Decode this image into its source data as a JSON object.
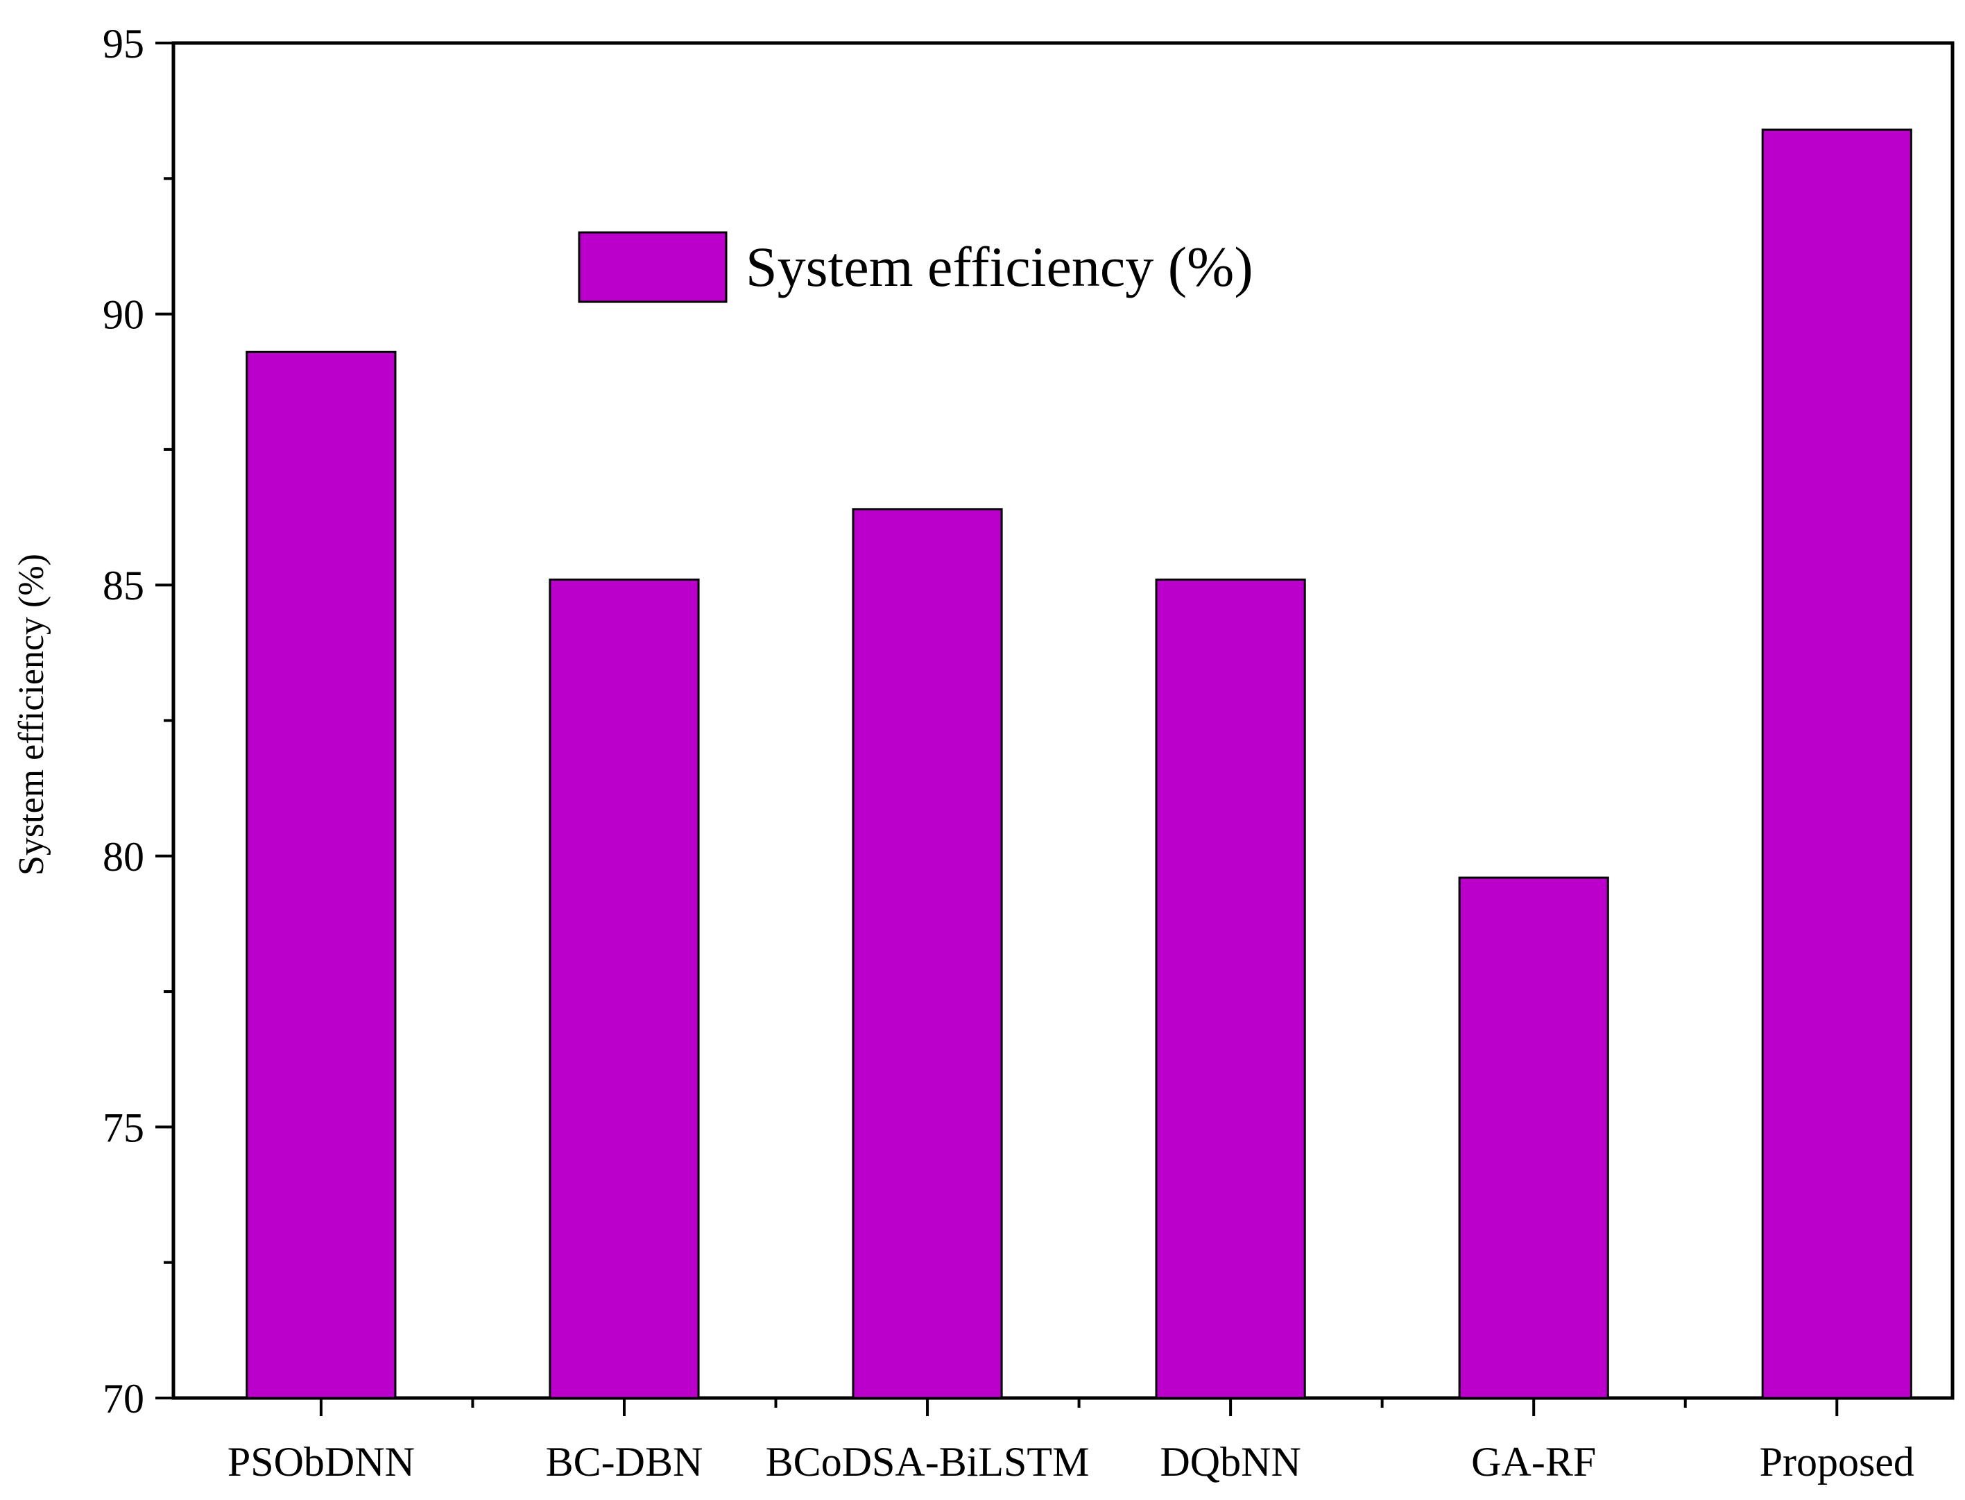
{
  "chart_data": {
    "type": "bar",
    "title": "",
    "xlabel": "",
    "ylabel": "System efficiency (%)",
    "ylim": [
      70,
      95
    ],
    "yticks": [
      70,
      75,
      80,
      85,
      90,
      95
    ],
    "grid": false,
    "legend_position": "top-center",
    "categories": [
      "PSObDNN",
      "BC-DBN",
      "BCoDSA-BiLSTM",
      "DQbNN",
      "GA-RF",
      "Proposed"
    ],
    "series": [
      {
        "name": "System efficiency (%)",
        "values": [
          89.3,
          85.1,
          86.4,
          85.1,
          79.6,
          93.4
        ],
        "color": "#bb00cc"
      }
    ]
  }
}
